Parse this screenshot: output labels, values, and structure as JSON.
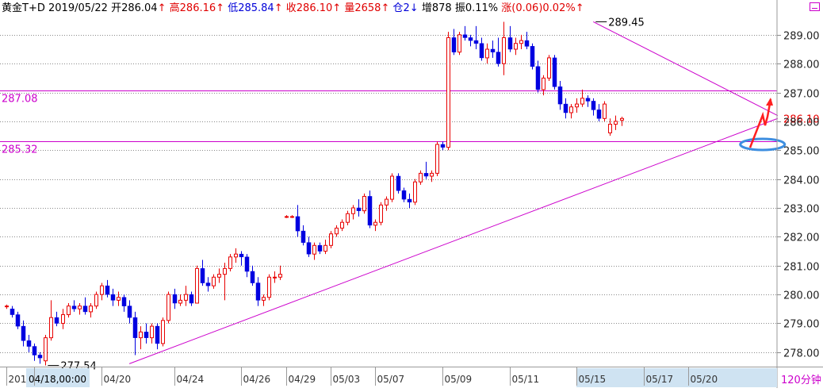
{
  "header": {
    "name": "黄金T+D",
    "date": "2019/05/22",
    "open_label": "开",
    "open_value": "286.04",
    "open_arrow": "↑",
    "high_label": "高",
    "high_value": "286.16",
    "high_arrow": "↑",
    "low_label": "低",
    "low_value": "285.84",
    "low_arrow": "↑",
    "close_label": "收",
    "close_value": "286.10",
    "close_arrow": "↑",
    "volume_label": "量",
    "volume_value": "2658",
    "volume_arrow": "↑",
    "oi_label": "仓",
    "oi_value": "2",
    "oi_arrow": "↓",
    "oi_change_label": "增",
    "oi_change_value": "878",
    "amplitude_label": "振",
    "amplitude_value": "0.11%",
    "change_label": "涨",
    "change_value": "(0.06)",
    "change_pct": "0.02%",
    "change_arrow": "↑"
  },
  "chart_data": {
    "type": "candlestick",
    "ylim": [
      277.5,
      289.6
    ],
    "y_ticks": [
      278,
      279,
      280,
      281,
      282,
      283,
      284,
      285,
      286,
      287,
      288,
      289
    ],
    "y_tick_labels": [
      "278.00",
      "279.00",
      "280.00",
      "281.00",
      "282.00",
      "283.00",
      "284.00",
      "285.00",
      "286.00",
      "287.00",
      "288.00",
      "289.00"
    ],
    "x_tick_labels": [
      {
        "label": "201",
        "bar": 0
      },
      {
        "label": "04/18,00:00",
        "bar": 5
      },
      {
        "label": "04/20",
        "bar": 17
      },
      {
        "label": "04/24",
        "bar": 30
      },
      {
        "label": "04/26",
        "bar": 42
      },
      {
        "label": "04/29",
        "bar": 50
      },
      {
        "label": "05/03",
        "bar": 58
      },
      {
        "label": "05/07",
        "bar": 66
      },
      {
        "label": "05/09",
        "bar": 78
      },
      {
        "label": "05/11",
        "bar": 90
      },
      {
        "label": "05/15",
        "bar": 102
      },
      {
        "label": "05/17",
        "bar": 114
      },
      {
        "label": "05/20",
        "bar": 122
      }
    ],
    "period_label": "120分钟",
    "horizontal_levels": [
      {
        "value": 287.08,
        "label": "287.08",
        "color": "#cc00cc"
      },
      {
        "value": 285.32,
        "label": "285.32",
        "color": "#cc00cc"
      }
    ],
    "trendlines": [
      {
        "from": [
          22,
          277.6
        ],
        "to": [
          138,
          286.1
        ],
        "color": "#cc00cc"
      },
      {
        "from": [
          105,
          289.45
        ],
        "to": [
          138,
          286.2
        ],
        "color": "#cc00cc"
      }
    ],
    "annotations": [
      {
        "text": "289.45",
        "bar": 105,
        "value": 289.45
      },
      {
        "text": "277.54",
        "bar": 7,
        "value": 277.54
      }
    ],
    "last_price_label": {
      "text": "286.10",
      "value": 286.1
    },
    "highlight_ellipse": {
      "bar": 134,
      "value": 285.2
    },
    "candles": [
      [
        279.6,
        279.65,
        279.5,
        279.6
      ],
      [
        279.5,
        279.6,
        279.2,
        279.3
      ],
      [
        279.3,
        279.4,
        278.8,
        278.9
      ],
      [
        278.9,
        279.1,
        278.2,
        278.4
      ],
      [
        278.4,
        278.6,
        278.0,
        278.2
      ],
      [
        278.2,
        278.3,
        277.7,
        277.9
      ],
      [
        277.9,
        278.0,
        277.6,
        277.8
      ],
      [
        277.7,
        278.6,
        277.54,
        278.5
      ],
      [
        278.5,
        279.8,
        278.4,
        279.2
      ],
      [
        279.2,
        279.4,
        278.9,
        279.0
      ],
      [
        279.0,
        279.5,
        278.8,
        279.3
      ],
      [
        279.3,
        279.7,
        279.2,
        279.6
      ],
      [
        279.6,
        279.8,
        279.4,
        279.5
      ],
      [
        279.5,
        279.7,
        279.3,
        279.6
      ],
      [
        279.6,
        279.9,
        279.3,
        279.4
      ],
      [
        279.4,
        279.7,
        279.2,
        279.6
      ],
      [
        279.6,
        280.1,
        279.5,
        280.0
      ],
      [
        280.0,
        280.4,
        279.8,
        280.3
      ],
      [
        280.3,
        280.5,
        279.9,
        280.0
      ],
      [
        280.0,
        280.2,
        279.6,
        279.8
      ],
      [
        279.8,
        280.1,
        279.6,
        279.9
      ],
      [
        279.9,
        280.0,
        279.4,
        279.6
      ],
      [
        279.6,
        279.8,
        279.0,
        279.2
      ],
      [
        279.2,
        279.4,
        277.9,
        278.5
      ],
      [
        278.5,
        278.9,
        278.1,
        278.7
      ],
      [
        278.7,
        279.0,
        278.3,
        278.5
      ],
      [
        278.5,
        279.0,
        278.3,
        278.9
      ],
      [
        278.9,
        279.0,
        278.1,
        278.3
      ],
      [
        278.3,
        279.2,
        278.2,
        279.1
      ],
      [
        279.1,
        280.1,
        279.0,
        280.0
      ],
      [
        280.0,
        280.2,
        279.5,
        279.7
      ],
      [
        279.7,
        280.0,
        279.6,
        279.8
      ],
      [
        279.8,
        280.3,
        279.6,
        280.0
      ],
      [
        280.0,
        280.1,
        279.6,
        279.7
      ],
      [
        279.7,
        281.0,
        279.7,
        280.9
      ],
      [
        280.9,
        281.2,
        280.3,
        280.4
      ],
      [
        280.4,
        280.6,
        280.1,
        280.3
      ],
      [
        280.3,
        280.7,
        280.2,
        280.6
      ],
      [
        280.6,
        280.9,
        280.4,
        280.7
      ],
      [
        280.7,
        281.1,
        279.8,
        280.9
      ],
      [
        280.9,
        281.4,
        280.8,
        281.3
      ],
      [
        281.3,
        281.6,
        281.1,
        281.4
      ],
      [
        281.4,
        281.5,
        281.0,
        281.3
      ],
      [
        281.3,
        281.4,
        280.6,
        280.8
      ],
      [
        280.8,
        281.0,
        280.3,
        280.4
      ],
      [
        280.4,
        280.6,
        279.6,
        279.8
      ],
      [
        279.8,
        280.0,
        279.6,
        279.9
      ],
      [
        279.9,
        280.7,
        279.8,
        280.6
      ],
      [
        280.6,
        280.8,
        280.4,
        280.6
      ],
      [
        280.6,
        281.0,
        280.5,
        280.7
      ],
      [
        282.7,
        282.75,
        282.65,
        282.7
      ],
      [
        282.7,
        282.75,
        282.65,
        282.7
      ],
      [
        282.7,
        283.1,
        282.0,
        282.2
      ],
      [
        282.2,
        282.4,
        281.7,
        281.8
      ],
      [
        281.8,
        282.0,
        281.3,
        281.4
      ],
      [
        281.4,
        281.8,
        281.2,
        281.7
      ],
      [
        281.7,
        281.8,
        281.4,
        281.5
      ],
      [
        281.5,
        281.9,
        281.4,
        281.7
      ],
      [
        281.7,
        282.2,
        281.6,
        282.1
      ],
      [
        282.1,
        282.4,
        282.0,
        282.3
      ],
      [
        282.3,
        282.6,
        282.2,
        282.5
      ],
      [
        282.5,
        282.9,
        282.4,
        282.8
      ],
      [
        282.8,
        283.1,
        282.6,
        283.0
      ],
      [
        283.0,
        283.3,
        282.7,
        282.9
      ],
      [
        282.9,
        283.5,
        282.8,
        283.4
      ],
      [
        283.4,
        283.6,
        282.3,
        282.4
      ],
      [
        282.4,
        282.6,
        282.2,
        282.5
      ],
      [
        282.5,
        283.2,
        282.4,
        283.1
      ],
      [
        283.1,
        283.4,
        282.9,
        283.3
      ],
      [
        283.3,
        284.2,
        283.2,
        284.1
      ],
      [
        284.1,
        284.2,
        283.5,
        283.6
      ],
      [
        283.6,
        283.7,
        283.2,
        283.3
      ],
      [
        283.3,
        283.5,
        283.0,
        283.2
      ],
      [
        283.2,
        284.0,
        283.1,
        283.9
      ],
      [
        283.9,
        284.3,
        283.8,
        284.2
      ],
      [
        284.2,
        284.6,
        284.0,
        284.1
      ],
      [
        284.1,
        284.3,
        283.9,
        284.2
      ],
      [
        284.2,
        285.3,
        284.1,
        285.2
      ],
      [
        285.2,
        285.3,
        285.0,
        285.1
      ],
      [
        285.1,
        289.1,
        285.0,
        288.9
      ],
      [
        288.9,
        289.2,
        288.3,
        288.4
      ],
      [
        288.4,
        289.1,
        288.3,
        289.0
      ],
      [
        289.0,
        289.3,
        288.8,
        288.9
      ],
      [
        288.9,
        289.0,
        288.6,
        288.8
      ],
      [
        288.8,
        289.3,
        288.5,
        288.7
      ],
      [
        288.7,
        288.9,
        288.1,
        288.2
      ],
      [
        288.2,
        288.7,
        288.0,
        288.5
      ],
      [
        288.5,
        288.8,
        288.2,
        288.4
      ],
      [
        288.4,
        288.9,
        287.9,
        288.0
      ],
      [
        288.0,
        289.45,
        287.6,
        288.9
      ],
      [
        288.9,
        289.3,
        288.4,
        288.5
      ],
      [
        288.5,
        288.9,
        288.3,
        288.7
      ],
      [
        288.7,
        289.0,
        288.5,
        288.8
      ],
      [
        288.8,
        289.1,
        288.5,
        288.6
      ],
      [
        288.6,
        288.7,
        287.8,
        287.9
      ],
      [
        287.9,
        288.1,
        287.0,
        287.1
      ],
      [
        287.1,
        287.6,
        286.9,
        287.5
      ],
      [
        287.5,
        288.3,
        287.4,
        288.2
      ],
      [
        288.2,
        288.3,
        287.1,
        287.2
      ],
      [
        287.2,
        287.4,
        286.4,
        286.6
      ],
      [
        286.6,
        286.8,
        286.1,
        286.3
      ],
      [
        286.3,
        286.6,
        286.1,
        286.5
      ],
      [
        286.5,
        286.8,
        286.3,
        286.6
      ],
      [
        286.6,
        287.1,
        286.5,
        286.8
      ],
      [
        286.8,
        286.9,
        286.5,
        286.7
      ],
      [
        286.7,
        286.8,
        286.2,
        286.4
      ],
      [
        286.4,
        286.6,
        286.0,
        286.1
      ],
      [
        286.1,
        286.7,
        286.0,
        286.6
      ],
      [
        285.6,
        286.1,
        285.5,
        285.9
      ],
      [
        285.9,
        286.2,
        285.7,
        286.0
      ],
      [
        286.04,
        286.16,
        285.84,
        286.1
      ]
    ]
  }
}
